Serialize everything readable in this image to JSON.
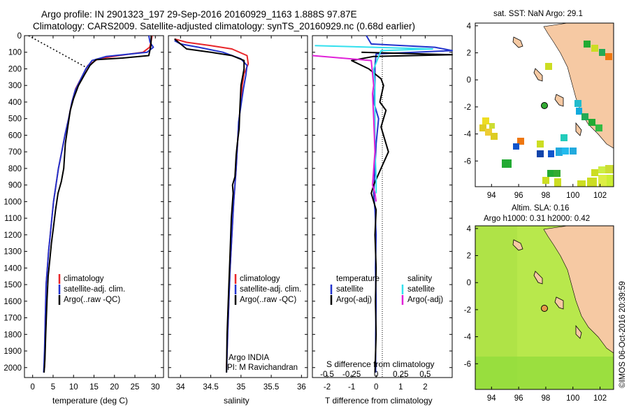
{
  "header": {
    "title_line1": "Argo profile: IN 2901323_197 29-Sep-2016 20160929_1163 1.888S 97.87E",
    "title_line2": "Climatology: CARS2009. Satellite-adjusted climatology: synTS_20160929.nc (0.68d earlier)"
  },
  "colors": {
    "climatology": "#e8262a",
    "satellite": "#2233cc",
    "argo": "#000000",
    "salinity_satellite": "#33e0ee",
    "salinity_argo": "#e022d8",
    "land": "#f6c9a3",
    "sla_field": "#b3e84a"
  },
  "chart_data": [
    {
      "type": "line",
      "title": "",
      "xlabel": "temperature (deg C)",
      "ylabel": "",
      "xlim": [
        -2,
        32
      ],
      "ylim": [
        2060,
        0
      ],
      "xticks": [
        0,
        5,
        10,
        15,
        20,
        25,
        30
      ],
      "yticks": [
        0,
        100,
        200,
        300,
        400,
        500,
        600,
        700,
        800,
        900,
        1000,
        1100,
        1200,
        1300,
        1400,
        1500,
        1600,
        1700,
        1800,
        1900,
        2000
      ],
      "legend": [
        "climatology",
        "satellite-adj. clim.",
        "Argo(..raw -QC)"
      ],
      "series": [
        {
          "name": "climatology",
          "color": "#e8262a",
          "x": [
            29.2,
            29.0,
            28.6,
            27.0,
            21.0,
            16.0,
            13.5,
            12.0,
            10.5,
            9.6,
            8.8,
            7.9,
            7.1,
            6.3,
            5.7,
            5.1,
            4.7,
            4.3,
            3.9,
            3.6,
            3.3,
            3.1,
            2.9
          ],
          "y": [
            0,
            30,
            70,
            100,
            120,
            140,
            180,
            250,
            320,
            400,
            500,
            600,
            700,
            800,
            900,
            1000,
            1100,
            1200,
            1300,
            1400,
            1500,
            1700,
            2000
          ]
        },
        {
          "name": "satellite-adj. clim.",
          "color": "#2233cc",
          "x": [
            28.4,
            28.7,
            29.5,
            28.0,
            18.0,
            14.5,
            13.0,
            11.8,
            10.4,
            9.6,
            8.8,
            7.9,
            7.1,
            6.3,
            5.7,
            5.1,
            4.7,
            4.3,
            3.9,
            3.6,
            3.3,
            3.1,
            2.9,
            2.7
          ],
          "y": [
            0,
            40,
            70,
            100,
            125,
            150,
            200,
            260,
            330,
            400,
            500,
            600,
            700,
            800,
            900,
            1000,
            1100,
            1200,
            1300,
            1400,
            1500,
            1700,
            1900,
            2030
          ]
        },
        {
          "name": "Argo(..raw -QC)",
          "color": "#000000",
          "x": [
            29.0,
            28.9,
            28.4,
            22.0,
            15.5,
            14.0,
            12.8,
            11.2,
            10.0,
            9.2,
            8.6,
            8.0,
            7.6,
            7.0,
            6.2,
            5.6,
            5.1,
            4.6,
            4.2,
            3.8,
            3.5,
            3.2,
            3.0,
            2.8
          ],
          "y": [
            0,
            60,
            120,
            135,
            145,
            180,
            230,
            300,
            380,
            450,
            550,
            650,
            800,
            880,
            950,
            1050,
            1150,
            1250,
            1350,
            1450,
            1600,
            1800,
            1950,
            2030
          ]
        }
      ],
      "annotations": [
        "dotted line from surface (-1, 0) to (13, 190)"
      ]
    },
    {
      "type": "line",
      "title": "",
      "xlabel": "salinity",
      "ylabel": "",
      "xlim": [
        33.8,
        36.1
      ],
      "ylim": [
        2060,
        0
      ],
      "xticks": [
        34,
        34.5,
        35,
        35.5,
        36
      ],
      "xtick_labels": [
        "34",
        "34.5",
        "35",
        "35.5",
        "36"
      ],
      "legend": [
        "climatology",
        "satellite-adj. clim.",
        "Argo(..raw -QC)"
      ],
      "series": [
        {
          "name": "climatology",
          "color": "#e8262a",
          "x": [
            33.9,
            34.1,
            34.5,
            34.85,
            35.1,
            35.12,
            35.05,
            35.02,
            35.0,
            34.97,
            34.95,
            34.92,
            34.88,
            34.85,
            34.82,
            34.8,
            34.78,
            34.76
          ],
          "y": [
            20,
            40,
            60,
            80,
            120,
            170,
            230,
            300,
            400,
            500,
            600,
            800,
            1000,
            1200,
            1400,
            1600,
            1800,
            2000
          ]
        },
        {
          "name": "satellite-adj. clim.",
          "color": "#2233cc",
          "x": [
            33.9,
            34.0,
            34.3,
            34.7,
            35.0,
            35.1,
            35.08,
            35.04,
            35.0,
            34.96,
            34.95,
            34.92,
            34.88,
            34.85,
            34.82,
            34.8,
            34.78,
            34.76
          ],
          "y": [
            30,
            50,
            70,
            100,
            140,
            180,
            240,
            320,
            420,
            520,
            600,
            800,
            1000,
            1200,
            1400,
            1600,
            1800,
            2030
          ]
        },
        {
          "name": "Argo(..raw -QC)",
          "color": "#000000",
          "x": [
            33.9,
            34.1,
            34.5,
            34.85,
            35.05,
            35.05,
            35.0,
            34.98,
            34.97,
            34.94,
            34.92,
            34.9,
            34.86,
            34.87,
            34.84,
            34.82,
            34.8,
            34.77,
            34.76
          ],
          "y": [
            20,
            80,
            100,
            120,
            150,
            200,
            300,
            450,
            560,
            650,
            720,
            850,
            900,
            950,
            1100,
            1300,
            1500,
            1800,
            2030
          ]
        }
      ],
      "annotations": [
        "Argo INDIA",
        "PI: M Ravichandran"
      ]
    },
    {
      "type": "line",
      "title": "",
      "xlabel": "T difference from climatology",
      "x2label": "S difference from climatology",
      "ylabel": "",
      "xlim": [
        -2.6,
        3.1
      ],
      "ylim": [
        2060,
        0
      ],
      "xticks": [
        -2,
        -1,
        0,
        1,
        2
      ],
      "x2ticks": [
        "-0.5",
        "-0.25",
        "0",
        "0.25",
        "0.5"
      ],
      "legend": [
        "temperature",
        "satellite",
        "Argo(-adj)",
        "salinity",
        "satellite",
        "Argo(-adj)"
      ],
      "series": [
        {
          "name": "temperature satellite",
          "color": "#2233cc",
          "x": [
            -0.4,
            -0.2,
            2.4,
            3.1,
            0.0,
            -0.05,
            -0.05,
            -0.1,
            0.1,
            0.0,
            -0.05,
            -0.1,
            -0.05,
            0.0,
            -0.03,
            0.0,
            -0.02,
            -0.02
          ],
          "y": [
            0,
            50,
            70,
            90,
            110,
            180,
            300,
            400,
            500,
            650,
            800,
            950,
            1050,
            1200,
            1400,
            1600,
            1800,
            2030
          ]
        },
        {
          "name": "temperature Argo(-adj)",
          "color": "#000000",
          "x": [
            -0.6,
            3.1,
            -0.1,
            -1.0,
            -0.3,
            0.2,
            0.3,
            0.15,
            0.4,
            0.2,
            0.5,
            0.2,
            -0.1,
            -0.2,
            0.0,
            -0.05,
            0.0,
            -0.03,
            0.0,
            -0.05
          ],
          "y": [
            100,
            115,
            125,
            150,
            200,
            260,
            300,
            400,
            450,
            550,
            700,
            800,
            900,
            950,
            1050,
            1200,
            1400,
            1600,
            1800,
            2030
          ]
        },
        {
          "name": "salinity satellite",
          "color": "#33e0ee",
          "x": [
            -2.5,
            2.3,
            0.2,
            -0.1,
            -0.05,
            -0.05,
            -0.05,
            0.0,
            0.0
          ],
          "y": [
            60,
            80,
            90,
            200,
            300,
            500,
            700,
            850,
            950
          ]
        },
        {
          "name": "salinity Argo(-adj)",
          "color": "#e022d8",
          "x": [
            -2.6,
            -0.2,
            -0.1,
            -0.15,
            -0.1,
            -0.05,
            -0.15,
            -0.05,
            0.0
          ],
          "y": [
            120,
            150,
            300,
            350,
            500,
            700,
            900,
            950,
            1000
          ]
        }
      ]
    }
  ],
  "maps": {
    "sst": {
      "title": "sat. SST: NaN Argo: 29.1",
      "x_ticks": [
        "94",
        "96",
        "98",
        "100",
        "102"
      ],
      "y_ticks": [
        "4",
        "2",
        "0",
        "-2",
        "-4",
        "-6"
      ],
      "xlim": [
        92.8,
        103
      ],
      "ylim": [
        -7.9,
        4.2
      ],
      "argo_position": [
        97.87,
        -1.888
      ]
    },
    "sla": {
      "title_line1": "Altim. SLA: 0.16",
      "title_line2": "Argo h1000: 0.31 h2000: 0.42",
      "x_ticks": [
        "94",
        "96",
        "98",
        "100",
        "102"
      ],
      "y_ticks": [
        "4",
        "2",
        "0",
        "-2",
        "-4",
        "-6"
      ],
      "xlim": [
        92.8,
        103
      ],
      "ylim": [
        -7.9,
        4.2
      ],
      "argo_position": [
        97.87,
        -1.888
      ]
    }
  },
  "footer": {
    "credit": "©IMOS 06-Oct-2016 20:39:59"
  }
}
